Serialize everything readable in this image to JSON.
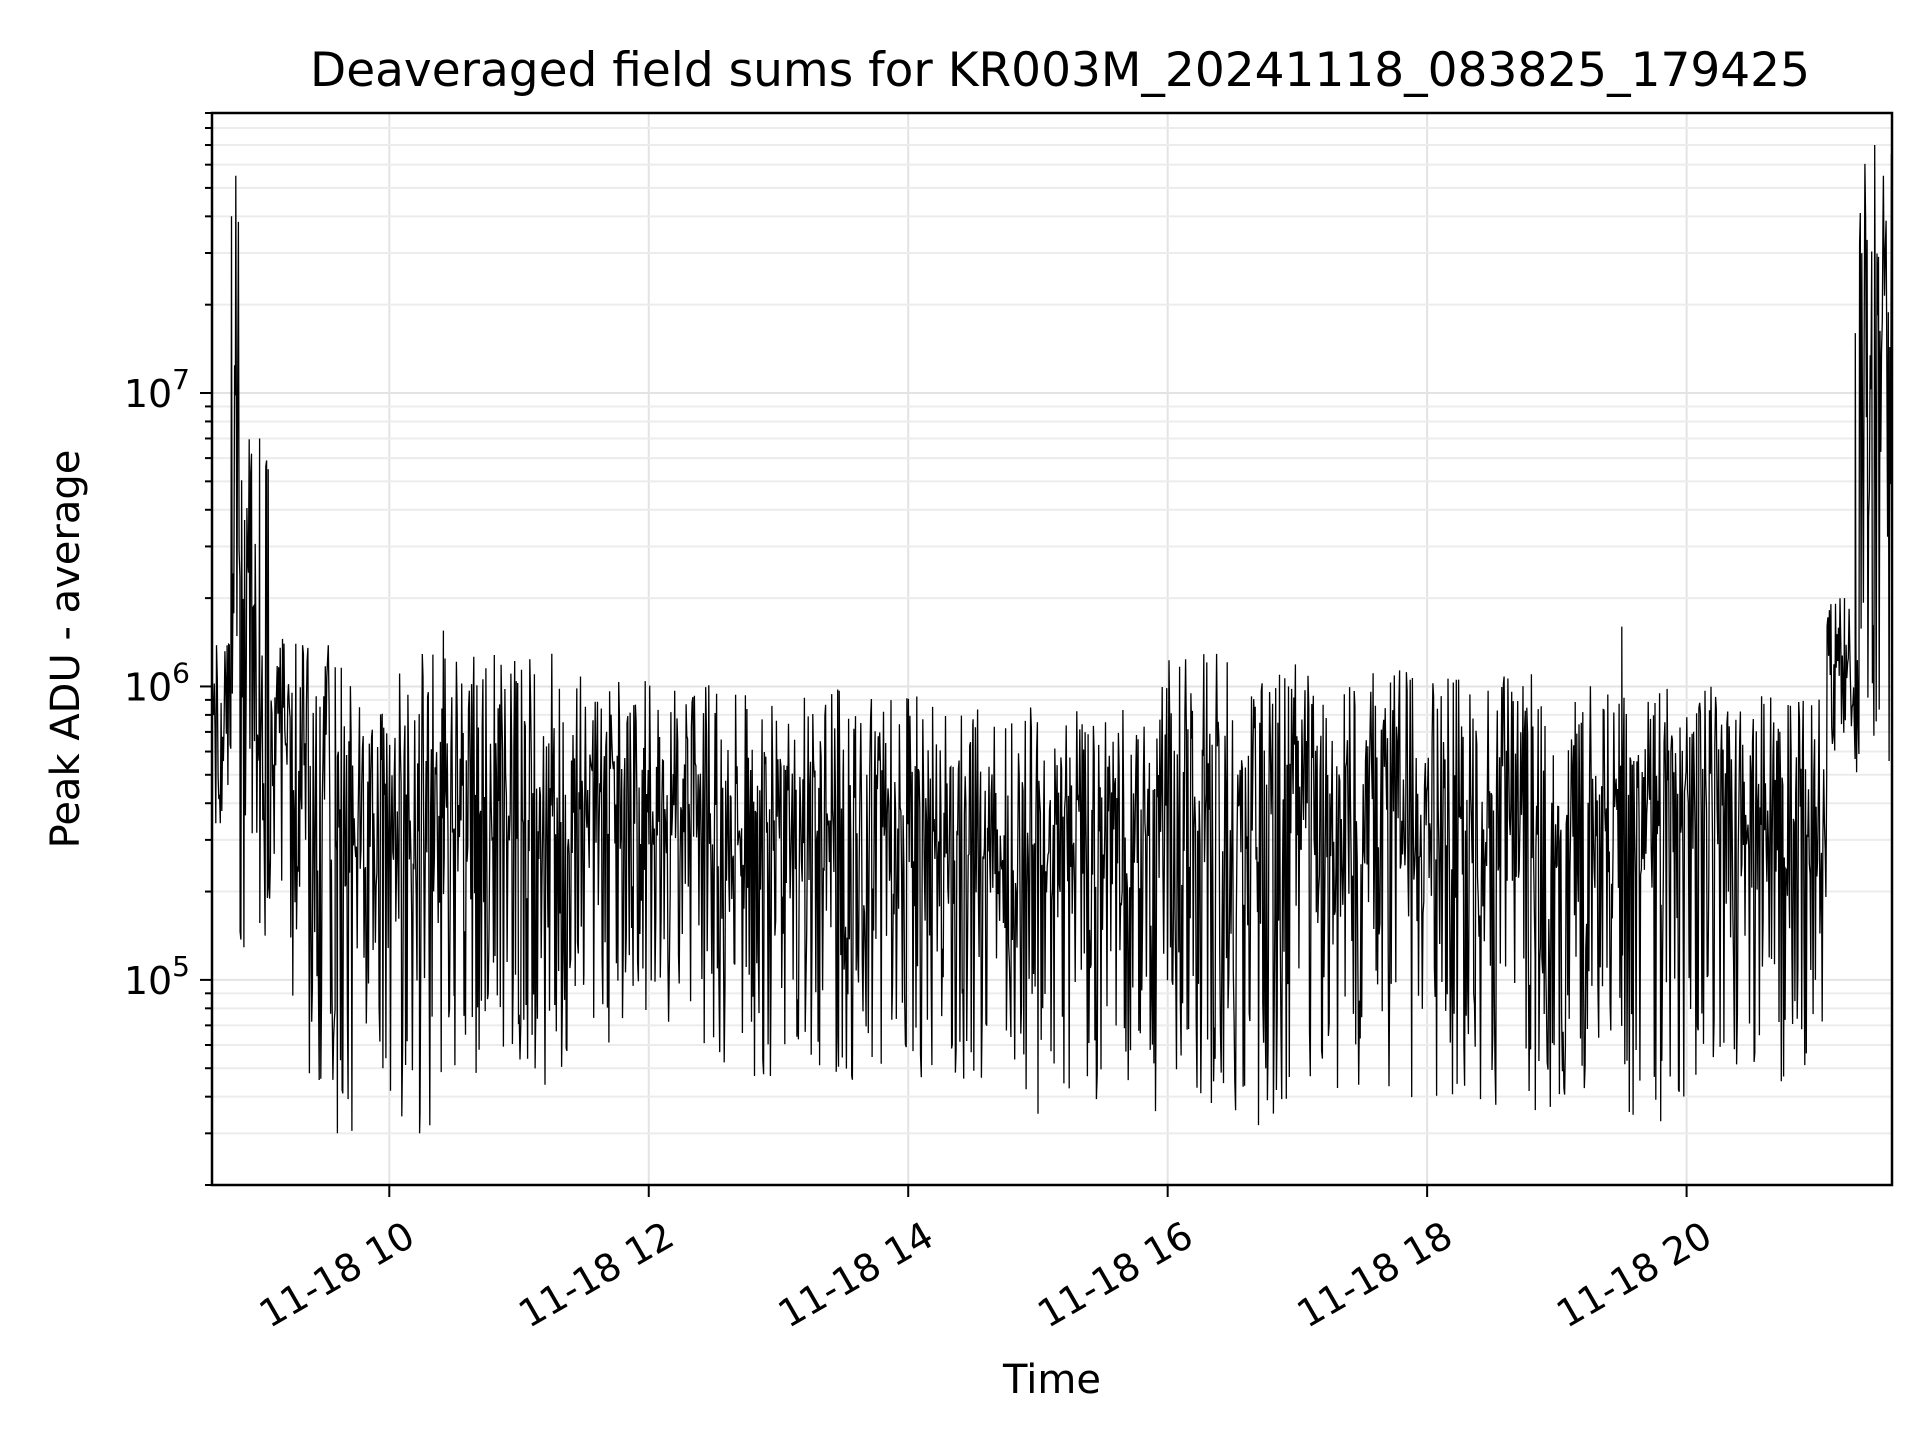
{
  "chart_data": {
    "type": "line",
    "title": "Deaveraged field sums for KR003M_20241118_083825_179425",
    "xlabel": "Time",
    "ylabel": "Peak ADU - average",
    "yscale": "log",
    "xlim": [
      "2024-11-18 08:38",
      "2024-11-18 21:35"
    ],
    "ylim": [
      20000,
      90000000
    ],
    "grid": true,
    "x_ticks": [
      {
        "label": "11-18 10",
        "time": "2024-11-18 10:00"
      },
      {
        "label": "11-18 12",
        "time": "2024-11-18 12:00"
      },
      {
        "label": "11-18 14",
        "time": "2024-11-18 14:00"
      },
      {
        "label": "11-18 16",
        "time": "2024-11-18 16:00"
      },
      {
        "label": "11-18 18",
        "time": "2024-11-18 18:00"
      },
      {
        "label": "11-18 20",
        "time": "2024-11-18 20:00"
      }
    ],
    "y_ticks": [
      {
        "base": "10",
        "exp": "5",
        "value": 100000
      },
      {
        "base": "10",
        "exp": "6",
        "value": 1000000
      },
      {
        "base": "10",
        "exp": "7",
        "value": 10000000
      }
    ],
    "series": [
      {
        "color": "#000000",
        "segments": [
          {
            "start": "2024-11-18 08:38",
            "end": "2024-11-18 08:46",
            "low": 300000,
            "high": 1400000
          },
          {
            "start": "2024-11-18 08:46",
            "end": "2024-11-18 08:51",
            "low": 400000,
            "high": 55000000
          },
          {
            "start": "2024-11-18 08:51",
            "end": "2024-11-18 09:05",
            "low": 120000,
            "high": 7000000
          },
          {
            "start": "2024-11-18 09:05",
            "end": "2024-11-18 09:15",
            "low": 130000,
            "high": 1500000
          },
          {
            "start": "2024-11-18 09:15",
            "end": "2024-11-18 09:35",
            "low": 40000,
            "high": 1400000
          },
          {
            "start": "2024-11-18 09:35",
            "end": "2024-11-18 10:30",
            "low": 30000,
            "high": 1300000
          },
          {
            "start": "2024-11-18 10:30",
            "end": "2024-11-18 11:30",
            "low": 40000,
            "high": 1300000
          },
          {
            "start": "2024-11-18 11:30",
            "end": "2024-11-18 12:30",
            "low": 60000,
            "high": 1050000
          },
          {
            "start": "2024-11-18 12:30",
            "end": "2024-11-18 13:30",
            "low": 45000,
            "high": 1000000
          },
          {
            "start": "2024-11-18 13:30",
            "end": "2024-11-18 14:30",
            "low": 45000,
            "high": 950000
          },
          {
            "start": "2024-11-18 14:30",
            "end": "2024-11-18 15:55",
            "low": 35000,
            "high": 850000
          },
          {
            "start": "2024-11-18 15:55",
            "end": "2024-11-18 17:00",
            "low": 35000,
            "high": 1300000
          },
          {
            "start": "2024-11-18 17:00",
            "end": "2024-11-18 18:30",
            "low": 38000,
            "high": 1150000
          },
          {
            "start": "2024-11-18 18:30",
            "end": "2024-11-18 19:30",
            "low": 36000,
            "high": 1100000
          },
          {
            "start": "2024-11-18 19:30",
            "end": "2024-11-18 20:20",
            "low": 33000,
            "high": 1000000
          },
          {
            "start": "2024-11-18 20:20",
            "end": "2024-11-18 21:05",
            "low": 45000,
            "high": 950000
          },
          {
            "start": "2024-11-18 21:05",
            "end": "2024-11-18 21:20",
            "low": 500000,
            "high": 2000000
          },
          {
            "start": "2024-11-18 21:20",
            "end": "2024-11-18 21:35",
            "low": 500000,
            "high": 70000000
          }
        ],
        "spikes": [
          {
            "time": "2024-11-18 08:47",
            "value": 40000000
          },
          {
            "time": "2024-11-18 08:49",
            "value": 55000000
          },
          {
            "time": "2024-11-18 09:00",
            "value": 7000000
          },
          {
            "time": "2024-11-18 09:04",
            "value": 5500000
          },
          {
            "time": "2024-11-18 09:36",
            "value": 30000
          },
          {
            "time": "2024-11-18 10:14",
            "value": 30000
          },
          {
            "time": "2024-11-18 10:25",
            "value": 1550000
          },
          {
            "time": "2024-11-18 15:00",
            "value": 35000
          },
          {
            "time": "2024-11-18 16:42",
            "value": 32000
          },
          {
            "time": "2024-11-18 18:50",
            "value": 36000
          },
          {
            "time": "2024-11-18 19:30",
            "value": 1600000
          },
          {
            "time": "2024-11-18 19:48",
            "value": 33000
          },
          {
            "time": "2024-11-18 21:13",
            "value": 2000000
          },
          {
            "time": "2024-11-18 21:18",
            "value": 16000000
          },
          {
            "time": "2024-11-18 21:27",
            "value": 70000000
          },
          {
            "time": "2024-11-18 21:31",
            "value": 55000000
          }
        ]
      }
    ]
  }
}
